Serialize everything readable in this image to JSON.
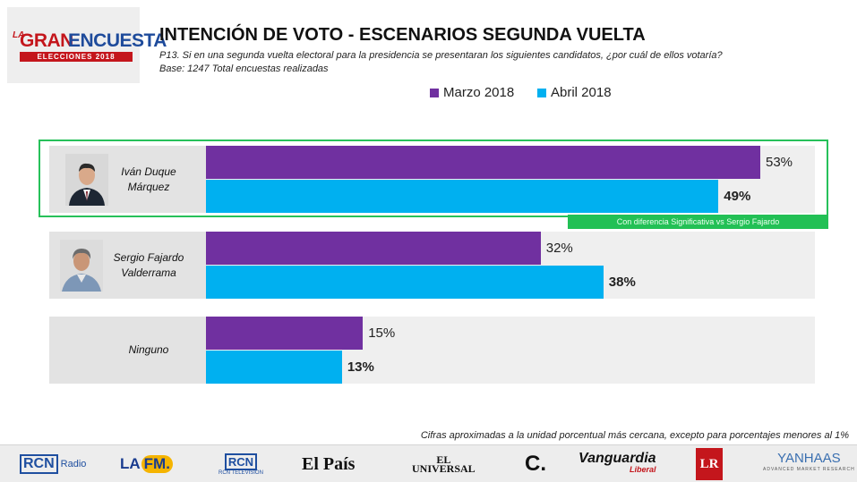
{
  "logo": {
    "prefix": "LA",
    "word1": "GRAN",
    "word2": "ENCUESTA",
    "subtitle_word": "ELECCIONES",
    "subtitle_year": "2018"
  },
  "header": {
    "title": "INTENCIÓN DE VOTO - ESCENARIOS SEGUNDA VUELTA",
    "question": "P13. Si en una segunda vuelta electoral para la presidencia se presentaran los siguientes candidatos, ¿por cuál de ellos votaría?",
    "base": "Base: 1247 Total encuestas realizadas"
  },
  "colors": {
    "marzo": "#7030a0",
    "abril": "#00b0f0",
    "highlight": "#22c055"
  },
  "chart_data": {
    "type": "bar",
    "orientation": "horizontal",
    "categories": [
      "Iván Duque Márquez",
      "Sergio Fajardo Valderrama",
      "Ninguno"
    ],
    "series": [
      {
        "name": "Marzo 2018",
        "values": [
          53,
          32,
          15
        ],
        "labels": [
          "53%",
          "32%",
          "15%"
        ]
      },
      {
        "name": "Abril 2018",
        "values": [
          49,
          38,
          13
        ],
        "labels": [
          "49%",
          "38%",
          "13%"
        ]
      }
    ],
    "xlim": [
      0,
      60
    ],
    "legend": "top",
    "grid": false,
    "annotation": "Con diferencia Significativa vs Sergio Fajardo"
  },
  "candidates": [
    {
      "line1": "Iván Duque",
      "line2": "Márquez",
      "icon": "candidate-photo"
    },
    {
      "line1": "Sergio Fajardo",
      "line2": "Valderrama",
      "icon": "candidate-photo"
    },
    {
      "line1": "Ninguno",
      "line2": ""
    }
  ],
  "footnote": "Cifras aproximadas a la unidad porcentual más cercana, excepto para porcentajes menores al 1%",
  "media": {
    "rcn_radio": "Radio",
    "rcn_radio_mark": "RCN",
    "lafm_a": "LA",
    "lafm_b": "FM.",
    "rcn_tv_mark": "RCN",
    "rcn_tv": "RCN TELEVISION",
    "elpais": "El País",
    "universal_1": "EL",
    "universal_2": "UNIVERSAL",
    "colombiano": "C.",
    "vanguardia": "Vanguardia",
    "vanguardia_sub": "Liberal",
    "lr": "LR",
    "yanhaas": "YANHAAS",
    "yanhaas_sub": "ADVANCED MARKET RESEARCH"
  }
}
